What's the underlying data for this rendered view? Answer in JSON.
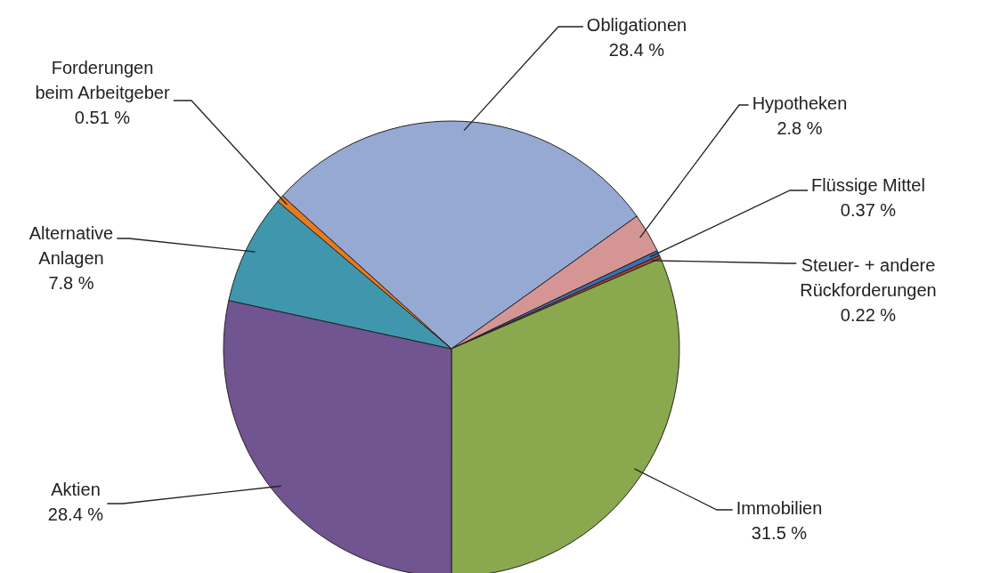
{
  "chart_data": {
    "type": "pie",
    "categories": [
      "Obligationen",
      "Hypotheken",
      "Flüssige Mittel",
      "Steuer- + andere Rückforderungen",
      "Immobilien",
      "Aktien",
      "Alternative Anlagen",
      "Forderungen beim Arbeitgeber"
    ],
    "values": [
      28.4,
      2.8,
      0.37,
      0.22,
      31.5,
      28.4,
      7.8,
      0.51
    ],
    "value_labels": [
      "28.4 %",
      "2.8 %",
      "0.37 %",
      "0.22 %",
      "31.5 %",
      "28.4 %",
      "7.8 %",
      "0.51 %"
    ],
    "colors": [
      "#95a9d2",
      "#d59595",
      "#3a6fb0",
      "#b0402e",
      "#8aa84e",
      "#705590",
      "#4097ad",
      "#e67a20"
    ]
  }
}
